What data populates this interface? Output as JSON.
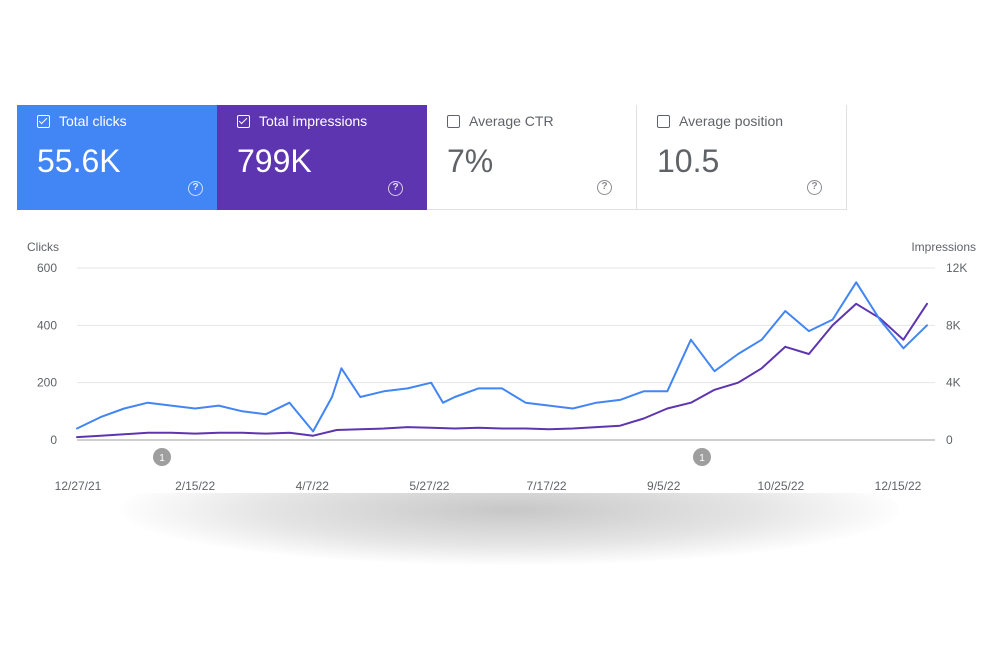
{
  "metrics": [
    {
      "label": "Total clicks",
      "value": "55.6K",
      "checked": true,
      "color": "#4285f4"
    },
    {
      "label": "Total impressions",
      "value": "799K",
      "checked": true,
      "color": "#5e35b1"
    },
    {
      "label": "Average CTR",
      "value": "7%",
      "checked": false
    },
    {
      "label": "Average position",
      "value": "10.5",
      "checked": false
    }
  ],
  "help_glyph": "?",
  "chart_data": {
    "type": "line",
    "title": "",
    "left_axis": {
      "label": "Clicks",
      "ticks": [
        "600",
        "400",
        "200",
        "0"
      ],
      "ylim": [
        0,
        600
      ]
    },
    "right_axis": {
      "label": "Impressions",
      "ticks": [
        "12K",
        "8K",
        "4K",
        "0"
      ],
      "ylim": [
        0,
        12000
      ]
    },
    "x_tick_labels": [
      "12/27/21",
      "2/15/22",
      "4/7/22",
      "5/27/22",
      "7/17/22",
      "9/5/22",
      "10/25/22",
      "12/15/22"
    ],
    "annotations": [
      {
        "text": "1",
        "at": "2/2/22"
      },
      {
        "text": "1",
        "at": "9/23/22"
      }
    ],
    "series": [
      {
        "name": "Total clicks",
        "axis": "left",
        "color": "#4285f4",
        "x": [
          0,
          10,
          20,
          30,
          40,
          50,
          60,
          70,
          80,
          90,
          100,
          108,
          112,
          120,
          130,
          140,
          150,
          155,
          160,
          170,
          180,
          190,
          200,
          210,
          220,
          230,
          240,
          250,
          260,
          270,
          280,
          290,
          300,
          310,
          320,
          330,
          340,
          350,
          360
        ],
        "values": [
          40,
          80,
          110,
          130,
          120,
          110,
          120,
          100,
          90,
          130,
          30,
          150,
          250,
          150,
          170,
          180,
          200,
          130,
          150,
          180,
          180,
          130,
          120,
          110,
          130,
          140,
          170,
          170,
          350,
          240,
          300,
          350,
          450,
          380,
          420,
          550,
          420,
          320,
          400
        ]
      },
      {
        "name": "Total impressions",
        "axis": "right",
        "color": "#5e35b1",
        "x": [
          0,
          10,
          20,
          30,
          40,
          50,
          60,
          70,
          80,
          90,
          100,
          110,
          120,
          130,
          140,
          150,
          160,
          170,
          180,
          190,
          200,
          210,
          220,
          230,
          240,
          250,
          260,
          270,
          280,
          290,
          300,
          310,
          320,
          330,
          340,
          350,
          360
        ],
        "values": [
          200,
          300,
          400,
          500,
          500,
          450,
          500,
          500,
          450,
          500,
          300,
          700,
          750,
          800,
          900,
          850,
          800,
          850,
          800,
          800,
          750,
          800,
          900,
          1000,
          1500,
          2200,
          2600,
          3500,
          4000,
          5000,
          6500,
          6000,
          8000,
          9500,
          8500,
          7000,
          9500
        ]
      }
    ]
  }
}
